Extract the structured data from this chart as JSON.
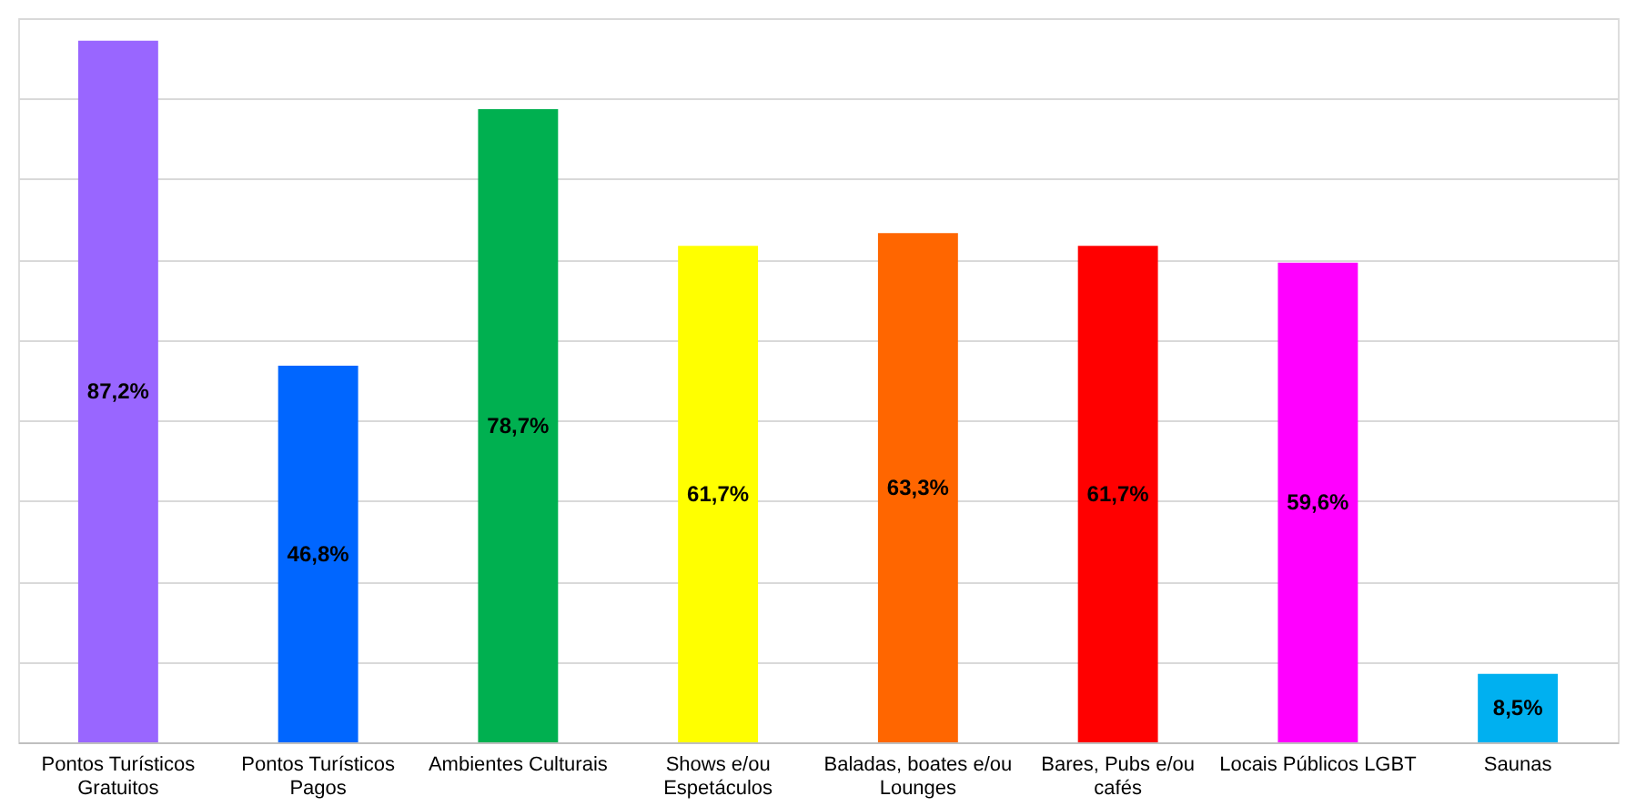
{
  "chart_data": {
    "type": "bar",
    "categories": [
      "Pontos Turísticos Gratuitos",
      "Pontos Turísticos Pagos",
      "Ambientes Culturais",
      "Shows e/ou Espetáculos",
      "Baladas, boates e/ou Lounges",
      "Bares, Pubs e/ou cafés",
      "Locais Públicos LGBT",
      "Saunas"
    ],
    "values": [
      87.2,
      46.8,
      78.7,
      61.7,
      63.3,
      61.7,
      59.6,
      8.5
    ],
    "value_labels": [
      "87,2%",
      "46,8%",
      "78,7%",
      "61,7%",
      "63,3%",
      "61,7%",
      "59,6%",
      "8,5%"
    ],
    "colors": [
      "#9966ff",
      "#0066ff",
      "#00b050",
      "#ffff00",
      "#ff6600",
      "#ff0000",
      "#ff00ff",
      "#00b0f0"
    ],
    "tick_labels": "x",
    "grid": "y"
  }
}
